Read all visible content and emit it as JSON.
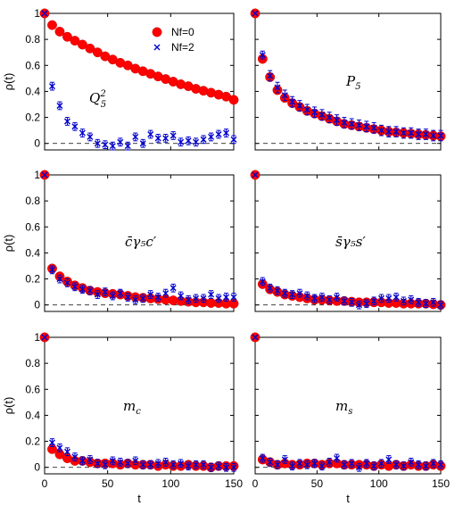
{
  "legend": {
    "items": [
      {
        "label": "Nf=0",
        "color": "#ff0000",
        "marker": "circle"
      },
      {
        "label": "Nf=2",
        "color": "#0000cc",
        "marker": "cross"
      }
    ]
  },
  "chart_data": [
    {
      "type": "scatter",
      "label_base": "Q",
      "label_sub": "5",
      "label_sup": "2",
      "xlabel": "",
      "ylabel": "ρ(t)",
      "xlim": [
        0,
        150
      ],
      "ylim": [
        -0.05,
        1
      ],
      "xticks": [
        "",
        "",
        "",
        ""
      ],
      "yticks": [
        "0",
        "0.2",
        "0.4",
        "0.6",
        "0.8",
        "1"
      ],
      "series": [
        {
          "name": "Nf=0",
          "x": [
            0,
            6,
            12,
            18,
            24,
            30,
            36,
            42,
            48,
            54,
            60,
            66,
            72,
            78,
            84,
            90,
            96,
            102,
            108,
            114,
            120,
            126,
            132,
            138,
            144,
            150
          ],
          "y": [
            1.0,
            0.91,
            0.86,
            0.82,
            0.79,
            0.76,
            0.73,
            0.7,
            0.67,
            0.645,
            0.62,
            0.6,
            0.575,
            0.555,
            0.535,
            0.515,
            0.495,
            0.475,
            0.455,
            0.44,
            0.42,
            0.405,
            0.39,
            0.375,
            0.36,
            0.335
          ]
        },
        {
          "name": "Nf=2",
          "x": [
            0,
            6,
            12,
            18,
            24,
            30,
            36,
            42,
            48,
            54,
            60,
            66,
            72,
            78,
            84,
            90,
            96,
            102,
            108,
            114,
            120,
            126,
            132,
            138,
            144,
            150
          ],
          "y": [
            1.0,
            0.44,
            0.29,
            0.17,
            0.13,
            0.08,
            0.05,
            0.0,
            -0.01,
            -0.02,
            0.01,
            -0.02,
            0.05,
            0.0,
            0.07,
            0.04,
            0.04,
            0.06,
            0.01,
            0.02,
            0.01,
            0.03,
            0.05,
            0.07,
            0.08,
            0.03
          ],
          "err": [
            0,
            0.03,
            0.03,
            0.03,
            0.03,
            0.03,
            0.03,
            0.03,
            0.03,
            0.03,
            0.03,
            0.03,
            0.03,
            0.03,
            0.03,
            0.03,
            0.03,
            0.03,
            0.03,
            0.03,
            0.03,
            0.03,
            0.03,
            0.03,
            0.03,
            0.03
          ]
        }
      ]
    },
    {
      "type": "scatter",
      "label_base": "P",
      "label_sub": "5",
      "label_sup": "",
      "xlabel": "",
      "ylabel": "",
      "xlim": [
        0,
        150
      ],
      "ylim": [
        -0.05,
        1
      ],
      "xticks": [
        "",
        "",
        "",
        ""
      ],
      "yticks": [
        "",
        "",
        "",
        "",
        "",
        ""
      ],
      "series": [
        {
          "name": "Nf=0",
          "x": [
            0,
            6,
            12,
            18,
            24,
            30,
            36,
            42,
            48,
            54,
            60,
            66,
            72,
            78,
            84,
            90,
            96,
            102,
            108,
            114,
            120,
            126,
            132,
            138,
            144,
            150
          ],
          "y": [
            1.0,
            0.65,
            0.51,
            0.41,
            0.35,
            0.31,
            0.28,
            0.25,
            0.23,
            0.21,
            0.19,
            0.17,
            0.15,
            0.14,
            0.13,
            0.12,
            0.11,
            0.1,
            0.09,
            0.085,
            0.08,
            0.075,
            0.07,
            0.065,
            0.06,
            0.055
          ]
        },
        {
          "name": "Nf=2",
          "x": [
            0,
            6,
            12,
            18,
            24,
            30,
            36,
            42,
            48,
            54,
            60,
            66,
            72,
            78,
            84,
            90,
            96,
            102,
            108,
            114,
            120,
            126,
            132,
            138,
            144,
            150
          ],
          "y": [
            1.0,
            0.68,
            0.52,
            0.43,
            0.37,
            0.32,
            0.29,
            0.26,
            0.24,
            0.22,
            0.2,
            0.18,
            0.16,
            0.15,
            0.14,
            0.13,
            0.12,
            0.1,
            0.09,
            0.09,
            0.08,
            0.08,
            0.07,
            0.07,
            0.06,
            0.06
          ],
          "err": [
            0,
            0.03,
            0.04,
            0.04,
            0.04,
            0.04,
            0.04,
            0.04,
            0.04,
            0.04,
            0.04,
            0.04,
            0.04,
            0.04,
            0.04,
            0.04,
            0.04,
            0.04,
            0.04,
            0.04,
            0.04,
            0.04,
            0.04,
            0.04,
            0.04,
            0.04
          ]
        }
      ]
    },
    {
      "type": "scatter",
      "label_base": "c̄γ₅c′",
      "label_sub": "",
      "label_sup": "",
      "xlabel": "",
      "ylabel": "ρ(t)",
      "xlim": [
        0,
        150
      ],
      "ylim": [
        -0.05,
        1
      ],
      "xticks": [
        "",
        "",
        "",
        ""
      ],
      "yticks": [
        "0",
        "0.2",
        "0.4",
        "0.6",
        "0.8",
        "1"
      ],
      "series": [
        {
          "name": "Nf=0",
          "x": [
            0,
            6,
            12,
            18,
            24,
            30,
            36,
            42,
            48,
            54,
            60,
            66,
            72,
            78,
            84,
            90,
            96,
            102,
            108,
            114,
            120,
            126,
            132,
            138,
            144,
            150
          ],
          "y": [
            1.0,
            0.28,
            0.22,
            0.18,
            0.15,
            0.13,
            0.11,
            0.1,
            0.09,
            0.085,
            0.08,
            0.07,
            0.06,
            0.055,
            0.05,
            0.045,
            0.04,
            0.035,
            0.03,
            0.025,
            0.02,
            0.02,
            0.015,
            0.015,
            0.01,
            0.01
          ]
        },
        {
          "name": "Nf=2",
          "x": [
            0,
            6,
            12,
            18,
            24,
            30,
            36,
            42,
            48,
            54,
            60,
            66,
            72,
            78,
            84,
            90,
            96,
            102,
            108,
            114,
            120,
            126,
            132,
            138,
            144,
            150
          ],
          "y": [
            1.0,
            0.27,
            0.2,
            0.17,
            0.14,
            0.12,
            0.11,
            0.08,
            0.1,
            0.07,
            0.09,
            0.06,
            0.04,
            0.05,
            0.08,
            0.06,
            0.09,
            0.13,
            0.07,
            0.04,
            0.05,
            0.05,
            0.08,
            0.05,
            0.06,
            0.06
          ],
          "err": [
            0,
            0.03,
            0.03,
            0.03,
            0.03,
            0.03,
            0.03,
            0.03,
            0.03,
            0.03,
            0.03,
            0.03,
            0.03,
            0.03,
            0.03,
            0.03,
            0.03,
            0.03,
            0.03,
            0.03,
            0.03,
            0.03,
            0.03,
            0.03,
            0.03,
            0.03
          ]
        }
      ]
    },
    {
      "type": "scatter",
      "label_base": "s̄γ₅s′",
      "label_sub": "",
      "label_sup": "",
      "xlabel": "",
      "ylabel": "",
      "xlim": [
        0,
        150
      ],
      "ylim": [
        -0.05,
        1
      ],
      "xticks": [
        "",
        "",
        "",
        ""
      ],
      "yticks": [
        "",
        "",
        "",
        "",
        "",
        ""
      ],
      "series": [
        {
          "name": "Nf=0",
          "x": [
            0,
            6,
            12,
            18,
            24,
            30,
            36,
            42,
            48,
            54,
            60,
            66,
            72,
            78,
            84,
            90,
            96,
            102,
            108,
            114,
            120,
            126,
            132,
            138,
            144,
            150
          ],
          "y": [
            1.0,
            0.16,
            0.12,
            0.1,
            0.08,
            0.07,
            0.06,
            0.05,
            0.04,
            0.04,
            0.035,
            0.03,
            0.03,
            0.025,
            0.02,
            0.02,
            0.02,
            0.02,
            0.015,
            0.015,
            0.01,
            0.01,
            0.01,
            0.01,
            0.005,
            0.0
          ]
        },
        {
          "name": "Nf=2",
          "x": [
            0,
            6,
            12,
            18,
            24,
            30,
            36,
            42,
            48,
            54,
            60,
            66,
            72,
            78,
            84,
            90,
            96,
            102,
            108,
            114,
            120,
            126,
            132,
            138,
            144,
            150
          ],
          "y": [
            1.0,
            0.18,
            0.13,
            0.11,
            0.09,
            0.08,
            0.09,
            0.07,
            0.05,
            0.06,
            0.04,
            0.06,
            0.03,
            0.02,
            0.0,
            0.01,
            0.03,
            0.05,
            0.05,
            0.06,
            0.03,
            0.04,
            0.02,
            0.01,
            0.02,
            0.0
          ],
          "err": [
            0,
            0.03,
            0.03,
            0.03,
            0.03,
            0.03,
            0.03,
            0.03,
            0.03,
            0.03,
            0.03,
            0.03,
            0.03,
            0.03,
            0.03,
            0.03,
            0.03,
            0.03,
            0.03,
            0.03,
            0.03,
            0.03,
            0.03,
            0.03,
            0.03,
            0.03
          ]
        }
      ]
    },
    {
      "type": "scatter",
      "label_base": "m",
      "label_sub": "c",
      "label_sup": "",
      "xlabel": "t",
      "ylabel": "ρ(t)",
      "xlim": [
        0,
        150
      ],
      "ylim": [
        -0.05,
        1
      ],
      "xticks": [
        "0",
        "50",
        "100",
        "150"
      ],
      "yticks": [
        "0",
        "0.2",
        "0.4",
        "0.6",
        "0.8",
        "1"
      ],
      "series": [
        {
          "name": "Nf=0",
          "x": [
            0,
            6,
            12,
            18,
            24,
            30,
            36,
            42,
            48,
            54,
            60,
            66,
            72,
            78,
            84,
            90,
            96,
            102,
            108,
            114,
            120,
            126,
            132,
            138,
            144,
            150
          ],
          "y": [
            1.0,
            0.14,
            0.1,
            0.07,
            0.05,
            0.05,
            0.04,
            0.03,
            0.03,
            0.03,
            0.02,
            0.03,
            0.02,
            0.02,
            0.02,
            0.01,
            0.02,
            0.01,
            0.01,
            0.02,
            0.01,
            0.01,
            0.0,
            0.01,
            0.01,
            0.01
          ]
        },
        {
          "name": "Nf=2",
          "x": [
            0,
            6,
            12,
            18,
            24,
            30,
            36,
            42,
            48,
            54,
            60,
            66,
            72,
            78,
            84,
            90,
            96,
            102,
            108,
            114,
            120,
            126,
            132,
            138,
            144,
            150
          ],
          "y": [
            1.0,
            0.19,
            0.15,
            0.12,
            0.08,
            0.05,
            0.06,
            0.03,
            0.02,
            0.05,
            0.04,
            0.03,
            0.05,
            0.02,
            0.02,
            0.03,
            0.04,
            0.02,
            0.03,
            0.01,
            0.02,
            0.02,
            0.0,
            0.01,
            0.0,
            0.0
          ],
          "err": [
            0,
            0.03,
            0.03,
            0.03,
            0.03,
            0.03,
            0.03,
            0.03,
            0.03,
            0.03,
            0.03,
            0.03,
            0.03,
            0.03,
            0.03,
            0.03,
            0.03,
            0.03,
            0.03,
            0.03,
            0.03,
            0.03,
            0.03,
            0.03,
            0.03,
            0.03
          ]
        }
      ]
    },
    {
      "type": "scatter",
      "label_base": "m",
      "label_sub": "s",
      "label_sup": "",
      "xlabel": "t",
      "ylabel": "",
      "xlim": [
        0,
        150
      ],
      "ylim": [
        -0.05,
        1
      ],
      "xticks": [
        "0",
        "50",
        "100",
        "150"
      ],
      "yticks": [
        "",
        "",
        "",
        "",
        "",
        ""
      ],
      "series": [
        {
          "name": "Nf=0",
          "x": [
            0,
            6,
            12,
            18,
            24,
            30,
            36,
            42,
            48,
            54,
            60,
            66,
            72,
            78,
            84,
            90,
            96,
            102,
            108,
            114,
            120,
            126,
            132,
            138,
            144,
            150
          ],
          "y": [
            1.0,
            0.06,
            0.04,
            0.02,
            0.03,
            0.02,
            0.02,
            0.03,
            0.03,
            0.02,
            0.03,
            0.03,
            0.02,
            0.02,
            0.02,
            0.02,
            0.01,
            0.02,
            0.01,
            0.02,
            0.01,
            0.02,
            0.01,
            0.01,
            0.02,
            0.01
          ]
        },
        {
          "name": "Nf=2",
          "x": [
            0,
            6,
            12,
            18,
            24,
            30,
            36,
            42,
            48,
            54,
            60,
            66,
            72,
            78,
            84,
            90,
            96,
            102,
            108,
            114,
            120,
            126,
            132,
            138,
            144,
            150
          ],
          "y": [
            1.0,
            0.07,
            0.04,
            0.02,
            0.06,
            0.01,
            0.03,
            0.02,
            0.03,
            0.01,
            0.04,
            0.07,
            0.02,
            0.03,
            0.0,
            0.03,
            0.01,
            0.03,
            0.06,
            0.02,
            0.01,
            0.04,
            0.02,
            0.01,
            0.03,
            0.02
          ],
          "err": [
            0,
            0.03,
            0.03,
            0.03,
            0.03,
            0.03,
            0.03,
            0.03,
            0.03,
            0.03,
            0.03,
            0.03,
            0.03,
            0.03,
            0.03,
            0.03,
            0.03,
            0.03,
            0.03,
            0.03,
            0.03,
            0.03,
            0.03,
            0.03,
            0.03,
            0.03
          ]
        }
      ]
    }
  ]
}
